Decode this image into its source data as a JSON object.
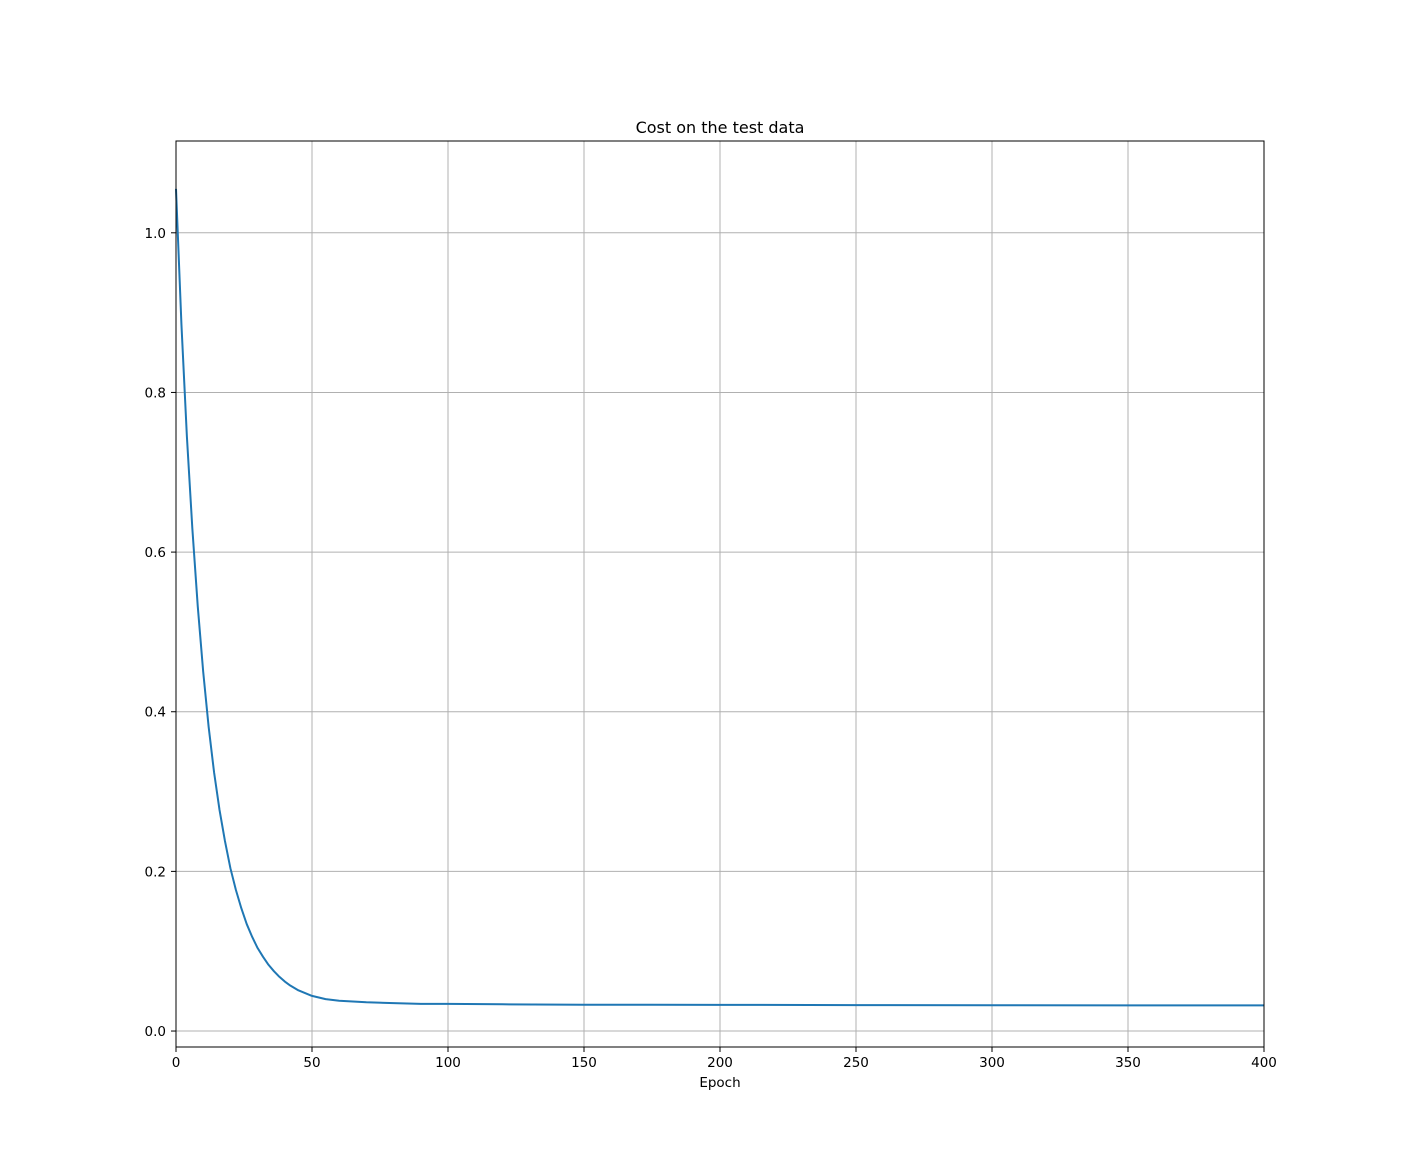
{
  "chart_data": {
    "type": "line",
    "title": "Cost on the test data",
    "xlabel": "Epoch",
    "ylabel": "",
    "xlim": [
      0,
      400
    ],
    "ylim": [
      -0.02,
      1.115
    ],
    "xticks": [
      0,
      50,
      100,
      150,
      200,
      250,
      300,
      350,
      400
    ],
    "yticks": [
      0.0,
      0.2,
      0.4,
      0.6,
      0.8,
      1.0
    ],
    "xtick_labels": [
      "0",
      "50",
      "100",
      "150",
      "200",
      "250",
      "300",
      "350",
      "400"
    ],
    "ytick_labels": [
      "0.0",
      "0.2",
      "0.4",
      "0.6",
      "0.8",
      "1.0"
    ],
    "grid": true,
    "legend": "none",
    "series": [
      {
        "color": "#1f77b4",
        "x": [
          0,
          2,
          4,
          6,
          8,
          10,
          12,
          14,
          16,
          18,
          20,
          22,
          24,
          26,
          28,
          30,
          32,
          34,
          36,
          38,
          40,
          42,
          45,
          50,
          55,
          60,
          70,
          80,
          90,
          100,
          120,
          150,
          175,
          200,
          250,
          300,
          350,
          400
        ],
        "y": [
          1.055,
          0.885,
          0.745,
          0.63,
          0.532,
          0.45,
          0.381,
          0.324,
          0.277,
          0.238,
          0.204,
          0.177,
          0.154,
          0.134,
          0.118,
          0.104,
          0.093,
          0.083,
          0.075,
          0.068,
          0.062,
          0.057,
          0.051,
          0.044,
          0.04,
          0.038,
          0.036,
          0.035,
          0.034,
          0.034,
          0.0335,
          0.033,
          0.033,
          0.0328,
          0.0325,
          0.0323,
          0.0322,
          0.0322
        ]
      }
    ]
  },
  "colors": {
    "line": "#1f77b4",
    "grid": "#b0b0b0",
    "axes": "#000000",
    "background": "#ffffff"
  }
}
